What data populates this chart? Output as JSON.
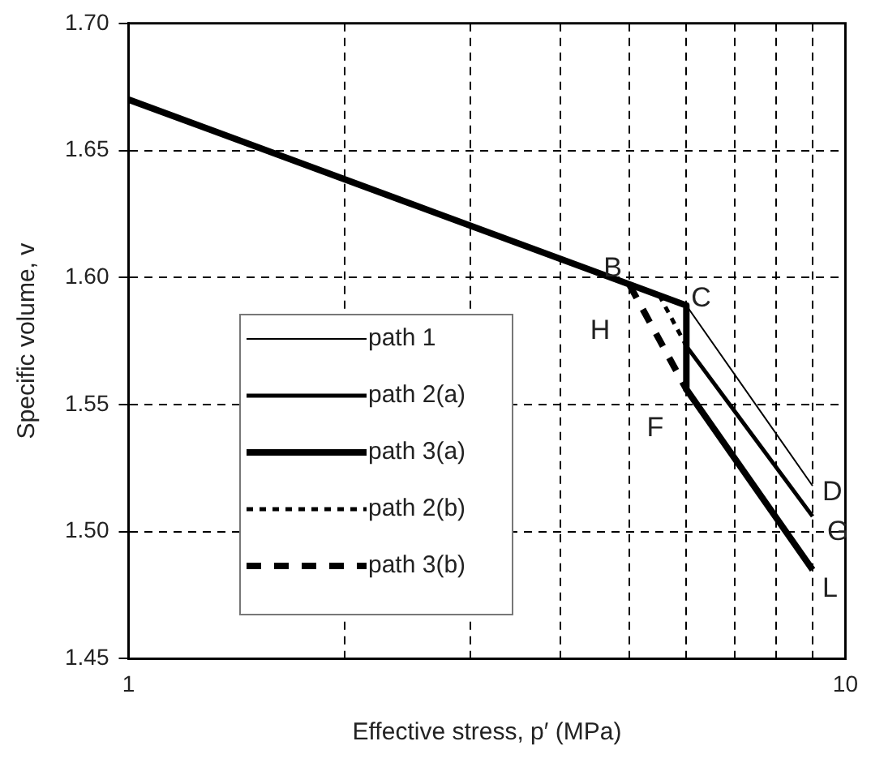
{
  "chart_data": {
    "type": "line",
    "xlabel": "Effective stress, p′ (MPa)",
    "ylabel": "Specific volume, v",
    "log": "x",
    "grid": true,
    "legend": "left",
    "marker": "none",
    "xlim": [
      1,
      10
    ],
    "xticks": [
      1,
      {
        "value": 2,
        "label": null
      },
      {
        "value": 3,
        "label": null
      },
      {
        "value": 4,
        "label": null
      },
      {
        "value": 5,
        "label": null
      },
      {
        "value": 6,
        "label": null
      },
      {
        "value": 7,
        "label": null
      },
      {
        "value": 8,
        "label": null
      },
      {
        "value": 9,
        "label": null
      },
      10
    ],
    "ylim": [
      1.45,
      1.7
    ],
    "yticks": [
      1.45,
      {
        "value": 1.5,
        "label": "1.50"
      },
      1.55,
      {
        "value": 1.6,
        "label": "1.60"
      },
      1.65,
      {
        "value": 1.7,
        "label": "1.70"
      }
    ],
    "series": [
      {
        "name": "path 1",
        "color": "#000000",
        "line_style": "solid",
        "x": [
          1,
          6,
          9
        ],
        "values": [
          1.67,
          1.589,
          1.518
        ]
      },
      {
        "name": "path 2(a)",
        "color": "#000000",
        "line_style": "solid",
        "x": [
          1,
          6,
          6,
          9
        ],
        "values": [
          1.67,
          1.589,
          1.573,
          1.506
        ]
      },
      {
        "name": "path 3(a)",
        "color": "#000000",
        "line_style": "solid",
        "x": [
          1,
          6,
          6,
          9
        ],
        "values": [
          1.67,
          1.589,
          1.556,
          1.485
        ]
      },
      {
        "name": "path 2(b)",
        "color": "#000000",
        "line_style": "dotted",
        "x": [
          5.5,
          6
        ],
        "values": [
          1.593,
          1.573
        ]
      },
      {
        "name": "path 3(b)",
        "color": "#000000",
        "line_style": "dashed",
        "x": [
          5,
          6
        ],
        "values": [
          1.597,
          1.556
        ]
      }
    ],
    "annotations": [
      {
        "text": "B",
        "x": 5,
        "y": 1.597
      },
      {
        "text": "C",
        "x": 6,
        "y": 1.589
      },
      {
        "text": "H",
        "x": 5,
        "y": 1.589
      },
      {
        "text": "F",
        "x": 6,
        "y": 1.556
      },
      {
        "text": "D",
        "x": 9,
        "y": 1.518
      },
      {
        "text": "G",
        "x": 9,
        "y": 1.506
      },
      {
        "text": "L",
        "x": 9,
        "y": 1.485
      }
    ]
  }
}
